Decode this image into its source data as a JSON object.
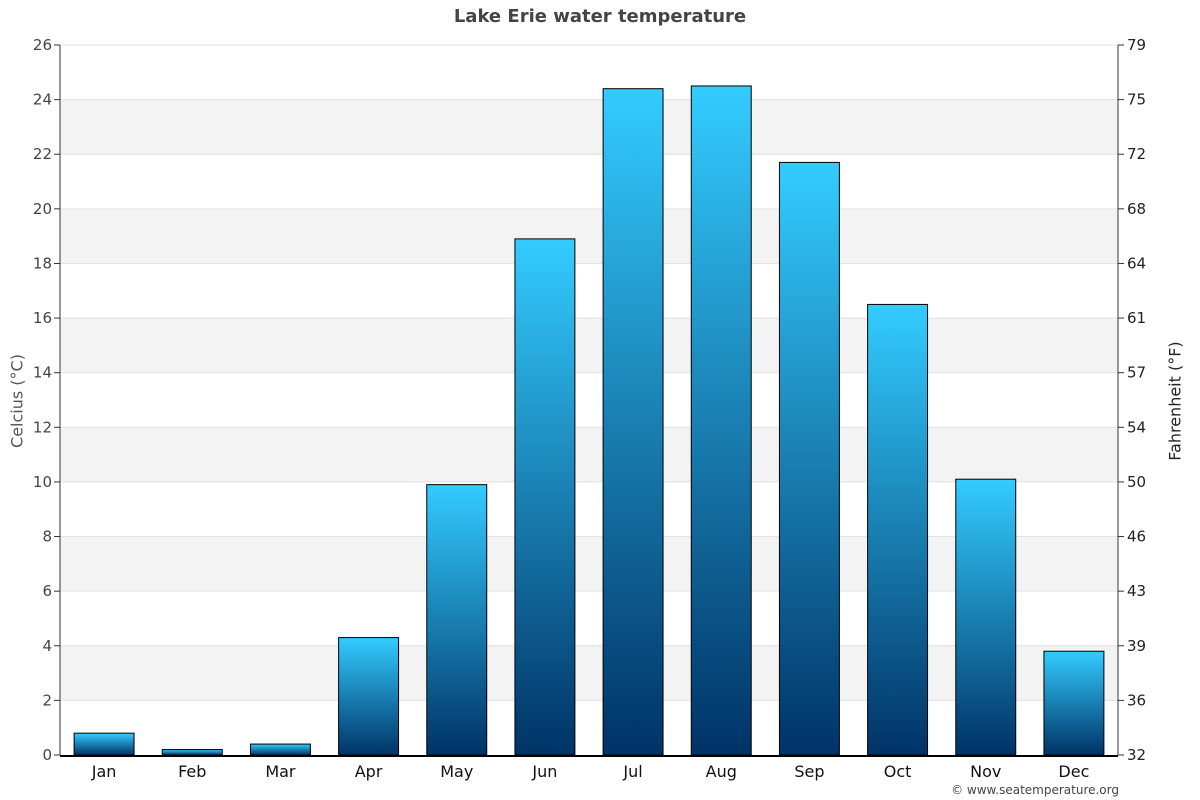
{
  "chart_data": {
    "type": "bar",
    "title": "Lake Erie water temperature",
    "xlabel": "",
    "ylabel": "Celcius (°C)",
    "ylabel_right": "Fahrenheit (°F)",
    "categories": [
      "Jan",
      "Feb",
      "Mar",
      "Apr",
      "May",
      "Jun",
      "Jul",
      "Aug",
      "Sep",
      "Oct",
      "Nov",
      "Dec"
    ],
    "values": [
      0.8,
      0.2,
      0.4,
      4.3,
      9.9,
      18.9,
      24.4,
      24.5,
      21.7,
      16.5,
      10.1,
      3.8
    ],
    "ylim": [
      0,
      26
    ],
    "yticks": [
      "0",
      "2",
      "4",
      "6",
      "8",
      "10",
      "12",
      "14",
      "16",
      "18",
      "20",
      "22",
      "24",
      "26"
    ],
    "yticks_right": [
      "32",
      "36",
      "39",
      "43",
      "46",
      "50",
      "54",
      "57",
      "61",
      "64",
      "68",
      "72",
      "75",
      "79"
    ],
    "grid": "horizontal alternating bands",
    "bar_gradient": {
      "top": "#33ccff",
      "bottom": "#003366"
    },
    "band_color": "#f3f3f3"
  },
  "footer": {
    "credit": "© www.seatemperature.org"
  }
}
